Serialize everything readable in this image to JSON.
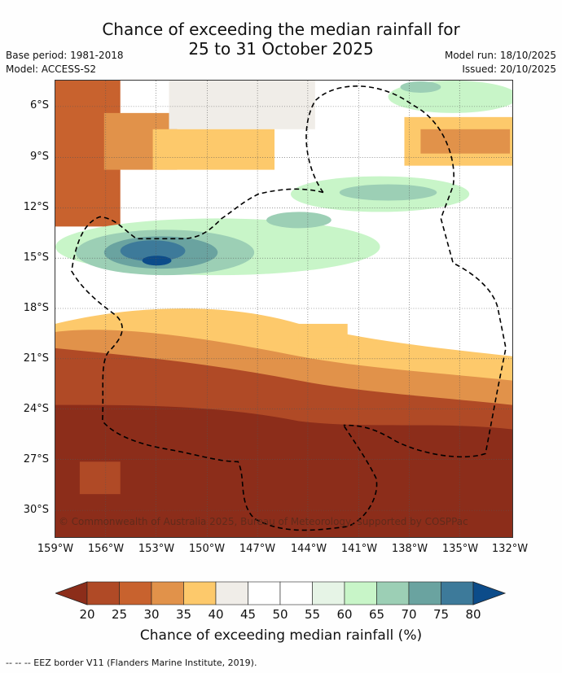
{
  "title_line1": "Chance of exceeding the median rainfall for",
  "title_line2": "25 to 31 October 2025",
  "base_period": "Base period: 1981-2018",
  "model": "Model: ACCESS-S2",
  "model_run": "Model run: 18/10/2025",
  "issued": "Issued: 20/10/2025",
  "lat_labels": [
    "6°S",
    "9°S",
    "12°S",
    "15°S",
    "18°S",
    "21°S",
    "24°S",
    "27°S",
    "30°S"
  ],
  "lon_labels": [
    "159°W",
    "156°W",
    "153°W",
    "150°W",
    "147°W",
    "144°W",
    "141°W",
    "138°W",
    "135°W",
    "132°W"
  ],
  "copyright": "© Commonwealth of Australia 2025, Bureau of Meteorology, supported by COSPPac",
  "colorbar": {
    "labels": [
      "20",
      "25",
      "30",
      "35",
      "40",
      "45",
      "50",
      "55",
      "60",
      "65",
      "70",
      "75",
      "80"
    ],
    "colors": [
      "#8c2d1a",
      "#b04a26",
      "#c8622e",
      "#e1924a",
      "#fdc96b",
      "#f0ede8",
      "#ffffff",
      "#ffffff",
      "#e6f4e6",
      "#c8f5c8",
      "#9ccfb5",
      "#6aa3a0",
      "#3d7a9a",
      "#0c4c8a"
    ],
    "title": "Chance of exceeding median rainfall (%)"
  },
  "footer": "-- -- -- EEZ border V11 (Flanders Marine Institute, 2019)."
}
